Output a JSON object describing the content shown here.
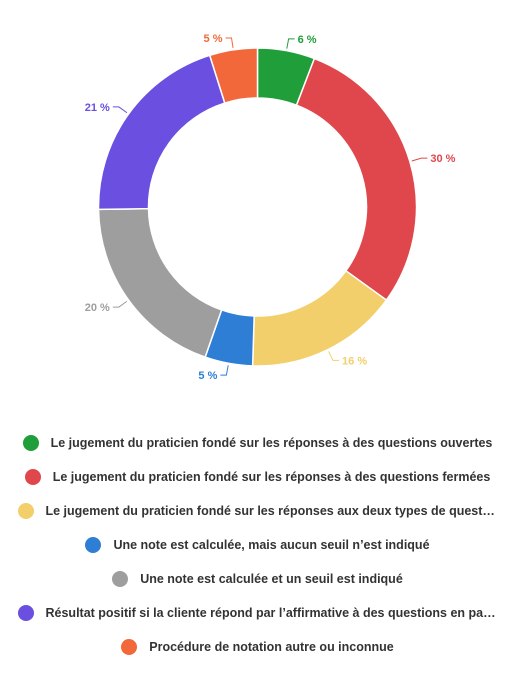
{
  "chart_data": {
    "type": "pie",
    "donut": true,
    "legend_position": "bottom",
    "series": [
      {
        "name": "Le jugement du praticien fondé sur les réponses à des questions ouvertes",
        "value": 6,
        "label": "6 %",
        "color": "#1f9e3a"
      },
      {
        "name": "Le jugement du praticien fondé sur les réponses à des questions fermées",
        "value": 30,
        "label": "30 %",
        "color": "#e0474c"
      },
      {
        "name": "Le jugement du praticien fondé sur les réponses aux deux types de questions",
        "value": 16,
        "label": "16 %",
        "color": "#f2cf6a"
      },
      {
        "name": "Une note est calculée, mais aucun seuil n’est indiqué",
        "value": 5,
        "label": "5 %",
        "color": "#2e7ed6"
      },
      {
        "name": "Une note est calculée et un seuil est indiqué",
        "value": 20,
        "label": "20 %",
        "color": "#9e9e9e"
      },
      {
        "name": "Résultat positif si la cliente répond par l’affirmative à des questions en partic…",
        "value": 21,
        "label": "21 %",
        "color": "#6b4fe0"
      },
      {
        "name": "Procédure de notation autre ou inconnue",
        "value": 5,
        "label": "5 %",
        "color": "#f2683a"
      }
    ]
  }
}
